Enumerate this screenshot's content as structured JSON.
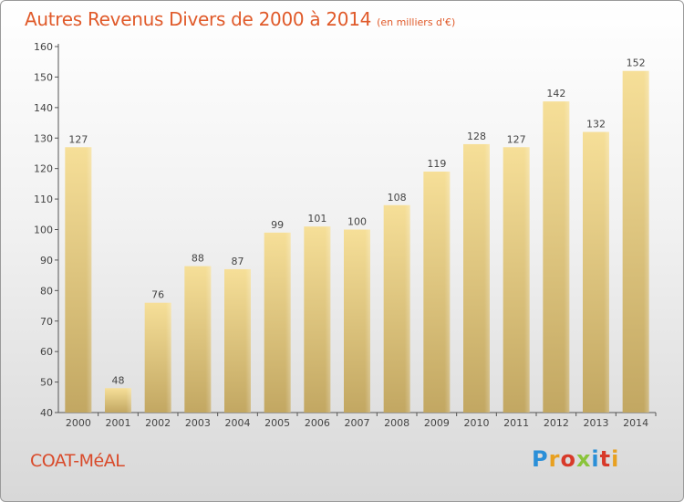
{
  "header": {
    "title": "Autres Revenus Divers de 2000 à 2014",
    "subtitle": "(en milliers d'€)"
  },
  "footer": {
    "commune": "COAT-MéAL",
    "logo_letters": [
      "P",
      "r",
      "o",
      "x",
      "i",
      "t",
      "i"
    ],
    "logo_colors": [
      "#2a8fd8",
      "#e8a020",
      "#d83a2a",
      "#8ac43a",
      "#2a8fd8",
      "#d83a2a",
      "#e8a020"
    ]
  },
  "chart_data": {
    "type": "bar",
    "categories": [
      "2000",
      "2001",
      "2002",
      "2003",
      "2004",
      "2005",
      "2006",
      "2007",
      "2008",
      "2009",
      "2010",
      "2011",
      "2012",
      "2013",
      "2014"
    ],
    "values": [
      127,
      48,
      76,
      88,
      87,
      99,
      101,
      100,
      108,
      119,
      128,
      127,
      142,
      132,
      152
    ],
    "ylim": [
      40,
      160
    ],
    "yticks": [
      40,
      50,
      60,
      70,
      80,
      90,
      100,
      110,
      120,
      130,
      140,
      150,
      160
    ],
    "grid": false,
    "bar_color_top": "#f6df98",
    "bar_color_bottom": "#c2a762",
    "text_color": "#444444"
  }
}
